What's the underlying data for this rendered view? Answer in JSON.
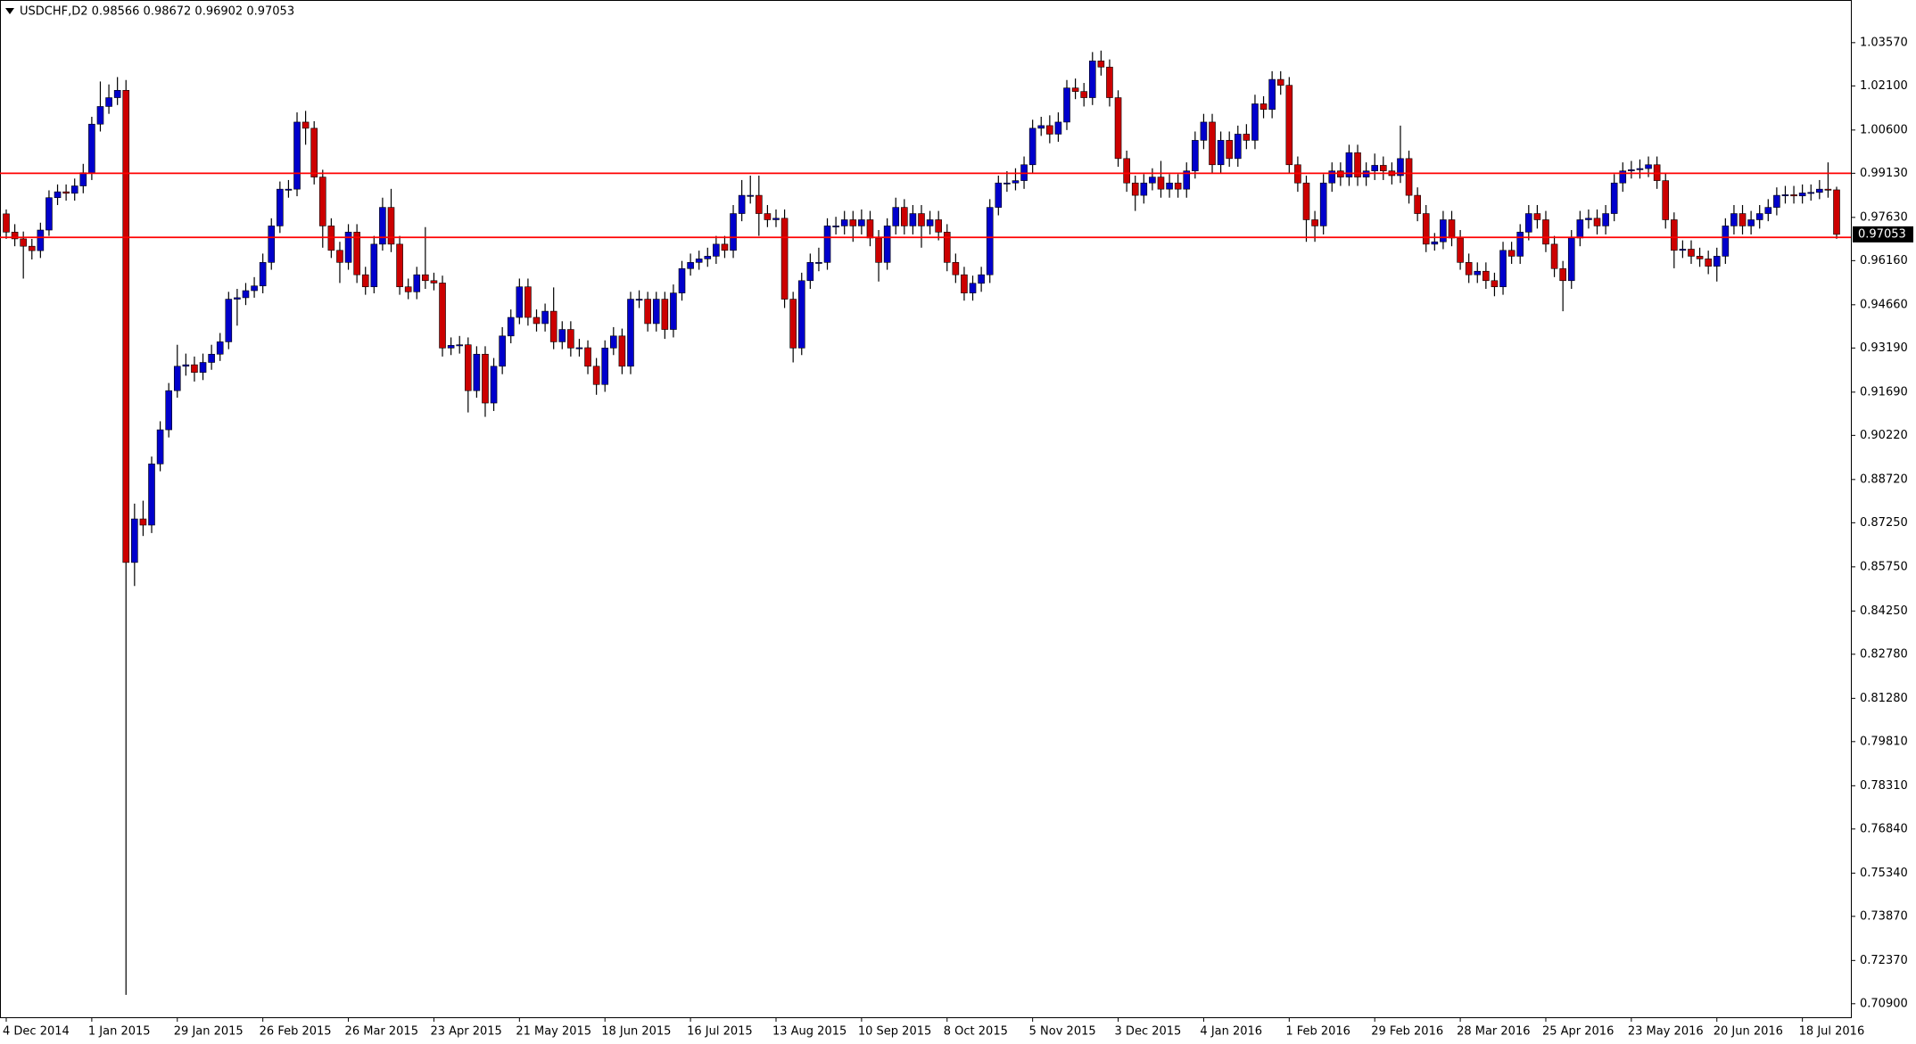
{
  "chart_data": {
    "type": "candlestick",
    "title": "USDCHF,D2  0.98566 0.98672 0.96902 0.97053",
    "up_color": "#0000cc",
    "down_color": "#cc0000",
    "wick_color": "#000000",
    "ylim": [
      0.7044,
      1.0502
    ],
    "yticks": [
      {
        "value": 1.0357,
        "label": "1.03570"
      },
      {
        "value": 1.021,
        "label": "1.02100"
      },
      {
        "value": 1.006,
        "label": "1.00600"
      },
      {
        "value": 0.9913,
        "label": "0.99130"
      },
      {
        "value": 0.9763,
        "label": "0.97630"
      },
      {
        "value": 0.9616,
        "label": "0.96160"
      },
      {
        "value": 0.9466,
        "label": "0.94660"
      },
      {
        "value": 0.9319,
        "label": "0.93190"
      },
      {
        "value": 0.9169,
        "label": "0.91690"
      },
      {
        "value": 0.9022,
        "label": "0.90220"
      },
      {
        "value": 0.8872,
        "label": "0.88720"
      },
      {
        "value": 0.8725,
        "label": "0.87250"
      },
      {
        "value": 0.8575,
        "label": "0.85750"
      },
      {
        "value": 0.8425,
        "label": "0.84250"
      },
      {
        "value": 0.8278,
        "label": "0.82780"
      },
      {
        "value": 0.8128,
        "label": "0.81280"
      },
      {
        "value": 0.7981,
        "label": "0.79810"
      },
      {
        "value": 0.7831,
        "label": "0.78310"
      },
      {
        "value": 0.7684,
        "label": "0.76840"
      },
      {
        "value": 0.7534,
        "label": "0.75340"
      },
      {
        "value": 0.7387,
        "label": "0.73870"
      },
      {
        "value": 0.7237,
        "label": "0.72370"
      },
      {
        "value": 0.709,
        "label": "0.70900"
      }
    ],
    "hlines": {
      "color": "#ff0000",
      "values": [
        0.9913,
        0.9695
      ]
    },
    "last_price": {
      "value": 0.97053,
      "label": "0.97053"
    },
    "categories": [
      "4 Dec 2014",
      null,
      null,
      null,
      null,
      null,
      null,
      null,
      null,
      null,
      "1 Jan 2015",
      null,
      null,
      null,
      null,
      null,
      null,
      null,
      null,
      null,
      "29 Jan 2015",
      null,
      null,
      null,
      null,
      null,
      null,
      null,
      null,
      null,
      "26 Feb 2015",
      null,
      null,
      null,
      null,
      null,
      null,
      null,
      null,
      null,
      "26 Mar 2015",
      null,
      null,
      null,
      null,
      null,
      null,
      null,
      null,
      null,
      "23 Apr 2015",
      null,
      null,
      null,
      null,
      null,
      null,
      null,
      null,
      null,
      "21 May 2015",
      null,
      null,
      null,
      null,
      null,
      null,
      null,
      null,
      null,
      "18 Jun 2015",
      null,
      null,
      null,
      null,
      null,
      null,
      null,
      null,
      null,
      "16 Jul 2015",
      null,
      null,
      null,
      null,
      null,
      null,
      null,
      null,
      null,
      "13 Aug 2015",
      null,
      null,
      null,
      null,
      null,
      null,
      null,
      null,
      null,
      "10 Sep 2015",
      null,
      null,
      null,
      null,
      null,
      null,
      null,
      null,
      null,
      "8 Oct 2015",
      null,
      null,
      null,
      null,
      null,
      null,
      null,
      null,
      null,
      "5 Nov 2015",
      null,
      null,
      null,
      null,
      null,
      null,
      null,
      null,
      null,
      "3 Dec 2015",
      null,
      null,
      null,
      null,
      null,
      null,
      null,
      null,
      null,
      "4 Jan 2016",
      null,
      null,
      null,
      null,
      null,
      null,
      null,
      null,
      null,
      "1 Feb 2016",
      null,
      null,
      null,
      null,
      null,
      null,
      null,
      null,
      null,
      "29 Feb 2016",
      null,
      null,
      null,
      null,
      null,
      null,
      null,
      null,
      null,
      "28 Mar 2016",
      null,
      null,
      null,
      null,
      null,
      null,
      null,
      null,
      null,
      "25 Apr 2016",
      null,
      null,
      null,
      null,
      null,
      null,
      null,
      null,
      null,
      "23 May 2016",
      null,
      null,
      null,
      null,
      null,
      null,
      null,
      null,
      null,
      "20 Jun 2016",
      null,
      null,
      null,
      null,
      null,
      null,
      null,
      null,
      null,
      "18 Jul 2016",
      null,
      null,
      null,
      null
    ],
    "open": [
      0.9775,
      0.9713,
      0.969,
      0.9665,
      0.965,
      0.972,
      0.983,
      0.985,
      0.9845,
      0.987,
      0.9915,
      1.008,
      1.014,
      1.017,
      1.0195,
      0.859,
      0.8738,
      0.8717,
      0.8925,
      0.9041,
      0.9174,
      0.9257,
      0.9262,
      0.9236,
      0.927,
      0.9298,
      0.934,
      0.9485,
      0.949,
      0.9514,
      0.953,
      0.961,
      0.9734,
      0.9859,
      0.9859,
      1.0087,
      1.0066,
      0.99,
      0.9734,
      0.9651,
      0.961,
      0.9713,
      0.9568,
      0.9527,
      0.9672,
      0.9797,
      0.9672,
      0.9527,
      0.951,
      0.9568,
      0.9548,
      0.954,
      0.9319,
      0.9328,
      0.933,
      0.9174,
      0.9298,
      0.9132,
      0.9257,
      0.936,
      0.9423,
      0.9527,
      0.9423,
      0.9402,
      0.9444,
      0.934,
      0.9382,
      0.9319,
      0.932,
      0.9257,
      0.9195,
      0.9319,
      0.936,
      0.9257,
      0.9485,
      0.9485,
      0.9402,
      0.9485,
      0.9382,
      0.9506,
      0.9589,
      0.961,
      0.9622,
      0.9631,
      0.9672,
      0.9651,
      0.9776,
      0.9838,
      0.9838,
      0.9776,
      0.9755,
      0.976,
      0.9485,
      0.9319,
      0.9548,
      0.961,
      0.961,
      0.9734,
      0.9734,
      0.9755,
      0.9734,
      0.9755,
      0.9693,
      0.961,
      0.9734,
      0.9797,
      0.9734,
      0.9776,
      0.9734,
      0.9755,
      0.9713,
      0.961,
      0.9568,
      0.9506,
      0.9539,
      0.9568,
      0.9797,
      0.988,
      0.988,
      0.9888,
      0.9942,
      1.0066,
      1.0075,
      1.0046,
      1.0087,
      1.0203,
      1.0191,
      1.017,
      1.0295,
      1.0274,
      1.017,
      0.9963,
      0.988,
      0.9838,
      0.988,
      0.99,
      0.9859,
      0.988,
      0.9859,
      0.9921,
      1.0025,
      1.0087,
      0.9942,
      1.0025,
      0.9963,
      1.0046,
      1.0025,
      1.0149,
      1.013,
      1.0232,
      1.0212,
      0.9942,
      0.988,
      0.9755,
      0.9734,
      0.988,
      0.9921,
      0.99,
      0.9983,
      0.99,
      0.9921,
      0.994,
      0.9921,
      0.9905,
      0.9963,
      0.9838,
      0.9776,
      0.9672,
      0.968,
      0.9755,
      0.9693,
      0.961,
      0.9568,
      0.958,
      0.9548,
      0.9527,
      0.9651,
      0.9631,
      0.9713,
      0.9776,
      0.9755,
      0.9672,
      0.9589,
      0.9548,
      0.9693,
      0.9755,
      0.976,
      0.9734,
      0.9776,
      0.988,
      0.9921,
      0.9925,
      0.9929,
      0.9942,
      0.9888,
      0.9755,
      0.9651,
      0.9655,
      0.9631,
      0.9622,
      0.9597,
      0.9631,
      0.9734,
      0.9776,
      0.9734,
      0.9755,
      0.9776,
      0.9797,
      0.9838,
      0.984,
      0.9836,
      0.9846,
      0.9848,
      0.9859,
      0.98566
    ],
    "high": [
      0.979,
      0.974,
      0.9715,
      0.969,
      0.9745,
      0.9855,
      0.9875,
      0.9875,
      0.9895,
      0.9945,
      1.0105,
      1.0225,
      1.0215,
      1.024,
      1.023,
      0.879,
      0.88,
      0.895,
      0.907,
      0.92,
      0.933,
      0.93,
      0.929,
      0.93,
      0.933,
      0.937,
      0.951,
      0.952,
      0.954,
      0.956,
      0.964,
      0.976,
      0.9885,
      0.989,
      1.012,
      1.0125,
      1.009,
      0.9925,
      0.976,
      0.968,
      0.974,
      0.974,
      0.9595,
      0.97,
      0.983,
      0.986,
      0.97,
      0.9555,
      0.9595,
      0.973,
      0.9575,
      0.9565,
      0.9355,
      0.936,
      0.9355,
      0.9325,
      0.9325,
      0.9285,
      0.939,
      0.945,
      0.9555,
      0.9555,
      0.945,
      0.947,
      0.9525,
      0.941,
      0.941,
      0.935,
      0.9345,
      0.9285,
      0.9345,
      0.939,
      0.9385,
      0.951,
      0.9515,
      0.951,
      0.951,
      0.951,
      0.9535,
      0.9615,
      0.964,
      0.965,
      0.966,
      0.97,
      0.97,
      0.9805,
      0.989,
      0.9905,
      0.9905,
      0.9805,
      0.979,
      0.979,
      0.951,
      0.9575,
      0.964,
      0.966,
      0.976,
      0.9765,
      0.9785,
      0.9785,
      0.979,
      0.9785,
      0.972,
      0.976,
      0.983,
      0.9825,
      0.9805,
      0.9805,
      0.9785,
      0.9785,
      0.974,
      0.964,
      0.9595,
      0.9565,
      0.9595,
      0.9825,
      0.9905,
      0.992,
      0.993,
      0.997,
      1.0095,
      1.0105,
      1.011,
      1.012,
      1.023,
      1.0235,
      1.022,
      1.0325,
      1.033,
      1.03,
      1.0195,
      0.999,
      0.9905,
      0.991,
      0.993,
      0.9955,
      0.991,
      0.991,
      0.995,
      1.0055,
      1.0115,
      1.0115,
      1.0055,
      1.0055,
      1.0075,
      1.008,
      1.018,
      1.0175,
      1.026,
      1.026,
      1.024,
      0.997,
      0.9905,
      0.9785,
      0.991,
      0.995,
      0.995,
      1.001,
      1.001,
      0.995,
      0.998,
      0.997,
      0.995,
      1.0075,
      0.999,
      0.9865,
      0.9805,
      0.971,
      0.9785,
      0.9785,
      0.972,
      0.964,
      0.961,
      0.961,
      0.9575,
      0.968,
      0.968,
      0.974,
      0.9805,
      0.9805,
      0.9785,
      0.97,
      0.9615,
      0.972,
      0.9785,
      0.979,
      0.979,
      0.9805,
      0.991,
      0.995,
      0.9955,
      0.996,
      0.997,
      0.997,
      0.9915,
      0.978,
      0.9685,
      0.9685,
      0.966,
      0.965,
      0.966,
      0.976,
      0.9805,
      0.9805,
      0.9785,
      0.9805,
      0.9825,
      0.9865,
      0.987,
      0.987,
      0.9875,
      0.9875,
      0.989,
      0.995,
      0.98672
    ],
    "low": [
      0.969,
      0.9665,
      0.9555,
      0.962,
      0.9625,
      0.97,
      0.9805,
      0.982,
      0.982,
      0.9845,
      0.989,
      1.0055,
      1.0115,
      1.0145,
      0.712,
      0.851,
      0.868,
      0.869,
      0.89,
      0.9015,
      0.915,
      0.9225,
      0.9205,
      0.921,
      0.9245,
      0.9275,
      0.9315,
      0.9395,
      0.9465,
      0.949,
      0.9505,
      0.9585,
      0.971,
      0.983,
      0.9835,
      1.001,
      0.9875,
      0.966,
      0.9625,
      0.954,
      0.9585,
      0.954,
      0.95,
      0.9505,
      0.965,
      0.9645,
      0.95,
      0.9485,
      0.9485,
      0.952,
      0.9515,
      0.929,
      0.9295,
      0.93,
      0.91,
      0.915,
      0.9085,
      0.9105,
      0.923,
      0.9335,
      0.94,
      0.9395,
      0.9375,
      0.9375,
      0.9315,
      0.9315,
      0.929,
      0.929,
      0.923,
      0.916,
      0.917,
      0.9295,
      0.923,
      0.923,
      0.9455,
      0.9375,
      0.9375,
      0.935,
      0.9355,
      0.948,
      0.9565,
      0.9585,
      0.9595,
      0.9605,
      0.9625,
      0.9625,
      0.975,
      0.981,
      0.97,
      0.973,
      0.973,
      0.9455,
      0.927,
      0.9295,
      0.952,
      0.958,
      0.9585,
      0.9705,
      0.9705,
      0.968,
      0.9705,
      0.9665,
      0.9545,
      0.9585,
      0.9705,
      0.9705,
      0.9705,
      0.966,
      0.9705,
      0.9685,
      0.958,
      0.954,
      0.948,
      0.948,
      0.951,
      0.954,
      0.977,
      0.985,
      0.9855,
      0.986,
      0.9915,
      1.004,
      1.0015,
      1.002,
      1.006,
      1.0165,
      1.014,
      1.0145,
      1.0245,
      1.014,
      0.9935,
      0.985,
      0.9785,
      0.981,
      0.9855,
      0.983,
      0.983,
      0.983,
      0.983,
      0.9895,
      0.9995,
      0.9915,
      0.9915,
      0.9935,
      0.9935,
      0.9995,
      0.9995,
      1.01,
      1.01,
      1.018,
      0.9915,
      0.985,
      0.968,
      0.968,
      0.9705,
      0.985,
      0.987,
      0.987,
      0.987,
      0.987,
      0.989,
      0.989,
      0.9875,
      0.988,
      0.981,
      0.975,
      0.9645,
      0.965,
      0.9655,
      0.9665,
      0.9585,
      0.954,
      0.954,
      0.952,
      0.9495,
      0.95,
      0.9605,
      0.9605,
      0.9685,
      0.9725,
      0.9645,
      0.956,
      0.9444,
      0.952,
      0.9665,
      0.9725,
      0.9705,
      0.9705,
      0.975,
      0.985,
      0.9895,
      0.9895,
      0.99,
      0.986,
      0.9725,
      0.959,
      0.9625,
      0.9605,
      0.9595,
      0.957,
      0.9545,
      0.9605,
      0.9705,
      0.9705,
      0.9705,
      0.9725,
      0.975,
      0.977,
      0.981,
      0.981,
      0.981,
      0.982,
      0.9825,
      0.983,
      0.96902
    ],
    "close": [
      0.9713,
      0.969,
      0.9665,
      0.965,
      0.972,
      0.983,
      0.985,
      0.9845,
      0.987,
      0.9915,
      1.008,
      1.014,
      1.017,
      1.0195,
      0.859,
      0.8738,
      0.8717,
      0.8925,
      0.9041,
      0.9174,
      0.9257,
      0.9262,
      0.9236,
      0.927,
      0.9298,
      0.934,
      0.9485,
      0.949,
      0.9514,
      0.953,
      0.961,
      0.9734,
      0.9859,
      0.9859,
      1.0087,
      1.0066,
      0.99,
      0.9734,
      0.9651,
      0.961,
      0.9713,
      0.9568,
      0.9527,
      0.9672,
      0.9797,
      0.9672,
      0.9527,
      0.951,
      0.9568,
      0.9548,
      0.954,
      0.9319,
      0.9328,
      0.933,
      0.9174,
      0.9298,
      0.9132,
      0.9257,
      0.936,
      0.9423,
      0.9527,
      0.9423,
      0.9402,
      0.9444,
      0.934,
      0.9382,
      0.9319,
      0.932,
      0.9257,
      0.9195,
      0.9319,
      0.936,
      0.9257,
      0.9485,
      0.9485,
      0.9402,
      0.9485,
      0.9382,
      0.9506,
      0.9589,
      0.961,
      0.9622,
      0.9631,
      0.9672,
      0.9651,
      0.9776,
      0.9838,
      0.9838,
      0.9776,
      0.9755,
      0.976,
      0.9485,
      0.9319,
      0.9548,
      0.961,
      0.961,
      0.9734,
      0.9734,
      0.9755,
      0.9734,
      0.9755,
      0.9693,
      0.961,
      0.9734,
      0.9797,
      0.9734,
      0.9776,
      0.9734,
      0.9755,
      0.9713,
      0.961,
      0.9568,
      0.9506,
      0.9539,
      0.9568,
      0.9797,
      0.988,
      0.988,
      0.9888,
      0.9942,
      1.0066,
      1.0075,
      1.0046,
      1.0087,
      1.0203,
      1.0191,
      1.017,
      1.0295,
      1.0274,
      1.017,
      0.9963,
      0.988,
      0.9838,
      0.988,
      0.99,
      0.9859,
      0.988,
      0.9859,
      0.9921,
      1.0025,
      1.0087,
      0.9942,
      1.0025,
      0.9963,
      1.0046,
      1.0025,
      1.0149,
      1.013,
      1.0232,
      1.0212,
      0.9942,
      0.988,
      0.9755,
      0.9734,
      0.988,
      0.9921,
      0.99,
      0.9983,
      0.99,
      0.9921,
      0.994,
      0.9921,
      0.9905,
      0.9963,
      0.9838,
      0.9776,
      0.9672,
      0.968,
      0.9755,
      0.9693,
      0.961,
      0.9568,
      0.958,
      0.9548,
      0.9527,
      0.9651,
      0.9631,
      0.9713,
      0.9776,
      0.9755,
      0.9672,
      0.9589,
      0.9548,
      0.9693,
      0.9755,
      0.976,
      0.9734,
      0.9776,
      0.988,
      0.9921,
      0.9925,
      0.9929,
      0.9942,
      0.9888,
      0.9755,
      0.9651,
      0.9655,
      0.9631,
      0.9622,
      0.9597,
      0.9631,
      0.9734,
      0.9776,
      0.9734,
      0.9755,
      0.9776,
      0.9797,
      0.9838,
      0.984,
      0.9836,
      0.9846,
      0.9848,
      0.9859,
      0.9857,
      0.97053
    ]
  }
}
